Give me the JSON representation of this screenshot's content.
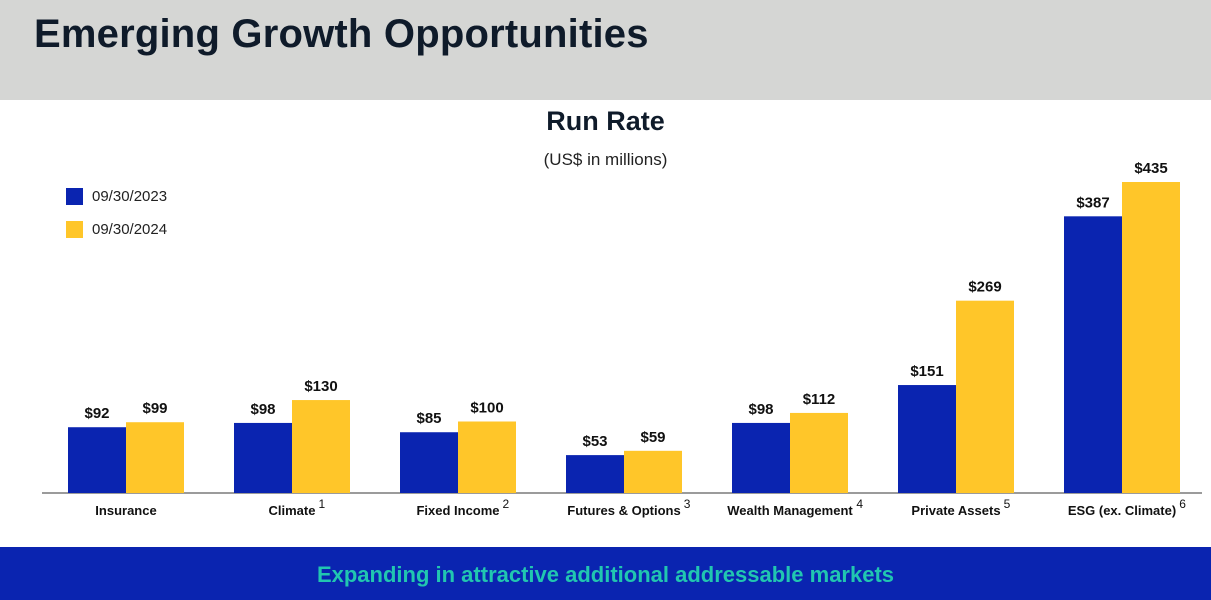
{
  "header": {
    "title": "Emerging Growth Opportunities"
  },
  "footer": {
    "text": "Expanding in attractive additional addressable markets"
  },
  "colors": {
    "series_2023": "#0a24b0",
    "series_2024": "#ffc629",
    "header_bg": "#d5d6d4",
    "footer_text": "#21c6b0"
  },
  "chart_data": {
    "type": "bar",
    "title": "Run Rate",
    "subtitle": "(US$ in millions)",
    "legend_position": "top-left",
    "categories": [
      "Insurance",
      "Climate",
      "Fixed Income",
      "Futures & Options",
      "Wealth Management",
      "Private Assets",
      "ESG (ex. Climate)"
    ],
    "footnotes": [
      "",
      "1",
      "2",
      "3",
      "4",
      "5",
      "6"
    ],
    "series": [
      {
        "name": "09/30/2023",
        "values": [
          92,
          98,
          85,
          53,
          98,
          151,
          387
        ],
        "labels": [
          "$92",
          "$98",
          "$85",
          "$53",
          "$98",
          "$151",
          "$387"
        ]
      },
      {
        "name": "09/30/2024",
        "values": [
          99,
          130,
          100,
          59,
          112,
          269,
          435
        ],
        "labels": [
          "$99",
          "$130",
          "$100",
          "$59",
          "$112",
          "$269",
          "$435"
        ]
      }
    ],
    "ylim": [
      0,
      435
    ],
    "grid": false
  }
}
